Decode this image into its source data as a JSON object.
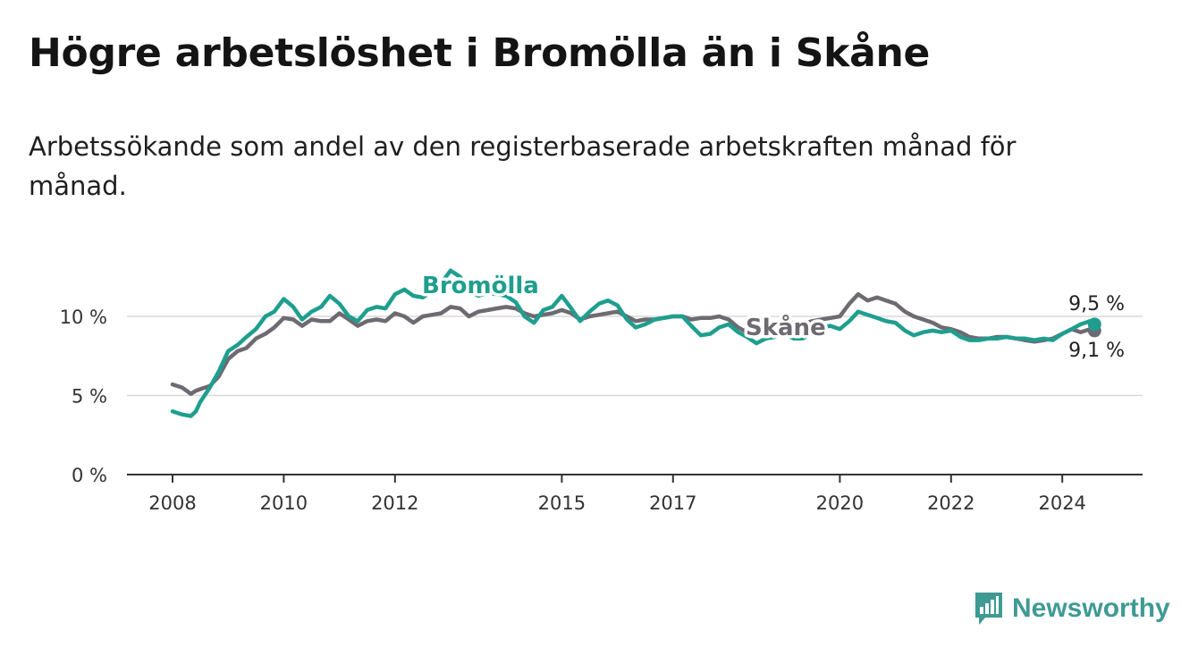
{
  "title": "Högre arbetslöshet i Bromölla än i Skåne",
  "subtitle": "Arbetssökande som andel av den registerbaserade arbetskraften månad för månad.",
  "brand": {
    "name": "Newsworthy",
    "icon": "newsworthy-chart-icon",
    "color": "#3f9a94"
  },
  "colors": {
    "bromolla": "#1f9e8f",
    "skane": "#6e6a72",
    "grid": "#d9d9d9",
    "axis": "#333333"
  },
  "chart_data": {
    "type": "line",
    "title": "Högre arbetslöshet i Bromölla än i Skåne",
    "xlabel": "",
    "ylabel": "",
    "xlim": [
      2008.0,
      2025.5
    ],
    "ylim": [
      0,
      12
    ],
    "y_ticks": [
      {
        "value": 0,
        "label": "0 %"
      },
      {
        "value": 5,
        "label": "5 %"
      },
      {
        "value": 10,
        "label": "10 %"
      }
    ],
    "x_ticks": [
      {
        "value": 2008,
        "label": "2008"
      },
      {
        "value": 2010,
        "label": "2010"
      },
      {
        "value": 2012,
        "label": "2012"
      },
      {
        "value": 2015,
        "label": "2015"
      },
      {
        "value": 2017,
        "label": "2017"
      },
      {
        "value": 2020,
        "label": "2020"
      },
      {
        "value": 2022,
        "label": "2022"
      },
      {
        "value": 2024,
        "label": "2024"
      }
    ],
    "series": [
      {
        "name": "Skåne",
        "label": "Skåne",
        "color": "#6e6a72",
        "end_label": "9,1 %",
        "x": [
          2008.0,
          2008.17,
          2008.33,
          2008.42,
          2008.5,
          2008.67,
          2008.83,
          2009.0,
          2009.17,
          2009.33,
          2009.5,
          2009.67,
          2009.83,
          2010.0,
          2010.17,
          2010.33,
          2010.5,
          2010.67,
          2010.83,
          2011.0,
          2011.17,
          2011.33,
          2011.5,
          2011.67,
          2011.83,
          2012.0,
          2012.17,
          2012.33,
          2012.5,
          2012.67,
          2012.83,
          2013.0,
          2013.17,
          2013.33,
          2013.5,
          2013.67,
          2013.83,
          2014.0,
          2014.17,
          2014.33,
          2014.5,
          2014.67,
          2014.83,
          2015.0,
          2015.17,
          2015.33,
          2015.5,
          2015.67,
          2015.83,
          2016.0,
          2016.17,
          2016.33,
          2016.5,
          2016.67,
          2016.83,
          2017.0,
          2017.17,
          2017.33,
          2017.5,
          2017.67,
          2017.83,
          2018.0,
          2018.17,
          2018.33,
          2018.5,
          2018.67,
          2018.83,
          2019.0,
          2019.17,
          2019.33,
          2019.5,
          2019.67,
          2019.83,
          2020.0,
          2020.17,
          2020.33,
          2020.5,
          2020.67,
          2020.83,
          2021.0,
          2021.17,
          2021.33,
          2021.5,
          2021.67,
          2021.83,
          2022.0,
          2022.17,
          2022.33,
          2022.5,
          2022.67,
          2022.83,
          2023.0,
          2023.17,
          2023.33,
          2023.5,
          2023.67,
          2023.83,
          2024.0,
          2024.17,
          2024.33,
          2024.5,
          2024.58
        ],
        "values": [
          5.7,
          5.5,
          5.1,
          5.3,
          5.4,
          5.6,
          6.2,
          7.3,
          7.8,
          8.0,
          8.6,
          8.9,
          9.3,
          9.9,
          9.8,
          9.4,
          9.8,
          9.7,
          9.7,
          10.2,
          9.8,
          9.4,
          9.7,
          9.8,
          9.7,
          10.2,
          10.0,
          9.6,
          10.0,
          10.1,
          10.2,
          10.6,
          10.5,
          10.0,
          10.3,
          10.4,
          10.5,
          10.6,
          10.5,
          10.2,
          10.0,
          10.1,
          10.2,
          10.4,
          10.2,
          9.8,
          10.0,
          10.1,
          10.2,
          10.3,
          10.0,
          9.7,
          9.8,
          9.8,
          9.9,
          10.0,
          10.0,
          9.8,
          9.9,
          9.9,
          10.0,
          9.8,
          9.3,
          9.0,
          9.2,
          9.4,
          9.3,
          9.4,
          9.6,
          9.5,
          9.7,
          9.8,
          9.9,
          10.0,
          10.8,
          11.4,
          11.0,
          11.2,
          11.0,
          10.8,
          10.3,
          10.0,
          9.8,
          9.6,
          9.3,
          9.2,
          9.0,
          8.7,
          8.6,
          8.6,
          8.7,
          8.7,
          8.6,
          8.5,
          8.4,
          8.5,
          8.6,
          8.9,
          9.2,
          9.0,
          9.2,
          9.1
        ]
      },
      {
        "name": "Bromölla",
        "label": "Bromölla",
        "color": "#1f9e8f",
        "end_label": "9,5 %",
        "x": [
          2008.0,
          2008.17,
          2008.33,
          2008.42,
          2008.5,
          2008.67,
          2008.83,
          2009.0,
          2009.17,
          2009.33,
          2009.5,
          2009.67,
          2009.83,
          2010.0,
          2010.17,
          2010.33,
          2010.5,
          2010.67,
          2010.83,
          2011.0,
          2011.17,
          2011.33,
          2011.5,
          2011.67,
          2011.83,
          2012.0,
          2012.17,
          2012.33,
          2012.5,
          2012.67,
          2012.83,
          2013.0,
          2013.17,
          2013.33,
          2013.5,
          2013.67,
          2013.83,
          2014.0,
          2014.17,
          2014.33,
          2014.5,
          2014.67,
          2014.83,
          2015.0,
          2015.17,
          2015.33,
          2015.5,
          2015.67,
          2015.83,
          2016.0,
          2016.17,
          2016.33,
          2016.5,
          2016.67,
          2016.83,
          2017.0,
          2017.17,
          2017.33,
          2017.5,
          2017.67,
          2017.83,
          2018.0,
          2018.17,
          2018.33,
          2018.5,
          2018.67,
          2018.83,
          2019.0,
          2019.17,
          2019.33,
          2019.5,
          2019.67,
          2019.83,
          2020.0,
          2020.17,
          2020.33,
          2020.5,
          2020.67,
          2020.83,
          2021.0,
          2021.17,
          2021.33,
          2021.5,
          2021.67,
          2021.83,
          2022.0,
          2022.17,
          2022.33,
          2022.5,
          2022.67,
          2022.83,
          2023.0,
          2023.17,
          2023.33,
          2023.5,
          2023.67,
          2023.83,
          2024.0,
          2024.17,
          2024.33,
          2024.5,
          2024.58
        ],
        "values": [
          4.0,
          3.8,
          3.7,
          4.0,
          4.6,
          5.5,
          6.5,
          7.8,
          8.2,
          8.7,
          9.2,
          10.0,
          10.3,
          11.1,
          10.6,
          9.8,
          10.3,
          10.6,
          11.3,
          10.8,
          10.0,
          9.7,
          10.4,
          10.6,
          10.5,
          11.4,
          11.7,
          11.3,
          11.2,
          11.6,
          12.1,
          12.9,
          12.5,
          11.6,
          11.3,
          11.5,
          11.4,
          11.3,
          10.9,
          10.0,
          9.6,
          10.4,
          10.6,
          11.3,
          10.5,
          9.7,
          10.3,
          10.8,
          11.0,
          10.7,
          9.8,
          9.3,
          9.5,
          9.8,
          9.9,
          10.0,
          10.0,
          9.4,
          8.8,
          8.9,
          9.3,
          9.5,
          9.0,
          8.7,
          8.3,
          8.6,
          8.7,
          8.9,
          8.6,
          8.6,
          8.9,
          9.3,
          9.4,
          9.2,
          9.7,
          10.3,
          10.1,
          9.9,
          9.7,
          9.6,
          9.1,
          8.8,
          9.0,
          9.1,
          9.0,
          9.1,
          8.7,
          8.5,
          8.5,
          8.6,
          8.6,
          8.7,
          8.6,
          8.6,
          8.5,
          8.6,
          8.5,
          8.9,
          9.2,
          9.5,
          9.7,
          9.5
        ]
      }
    ]
  }
}
